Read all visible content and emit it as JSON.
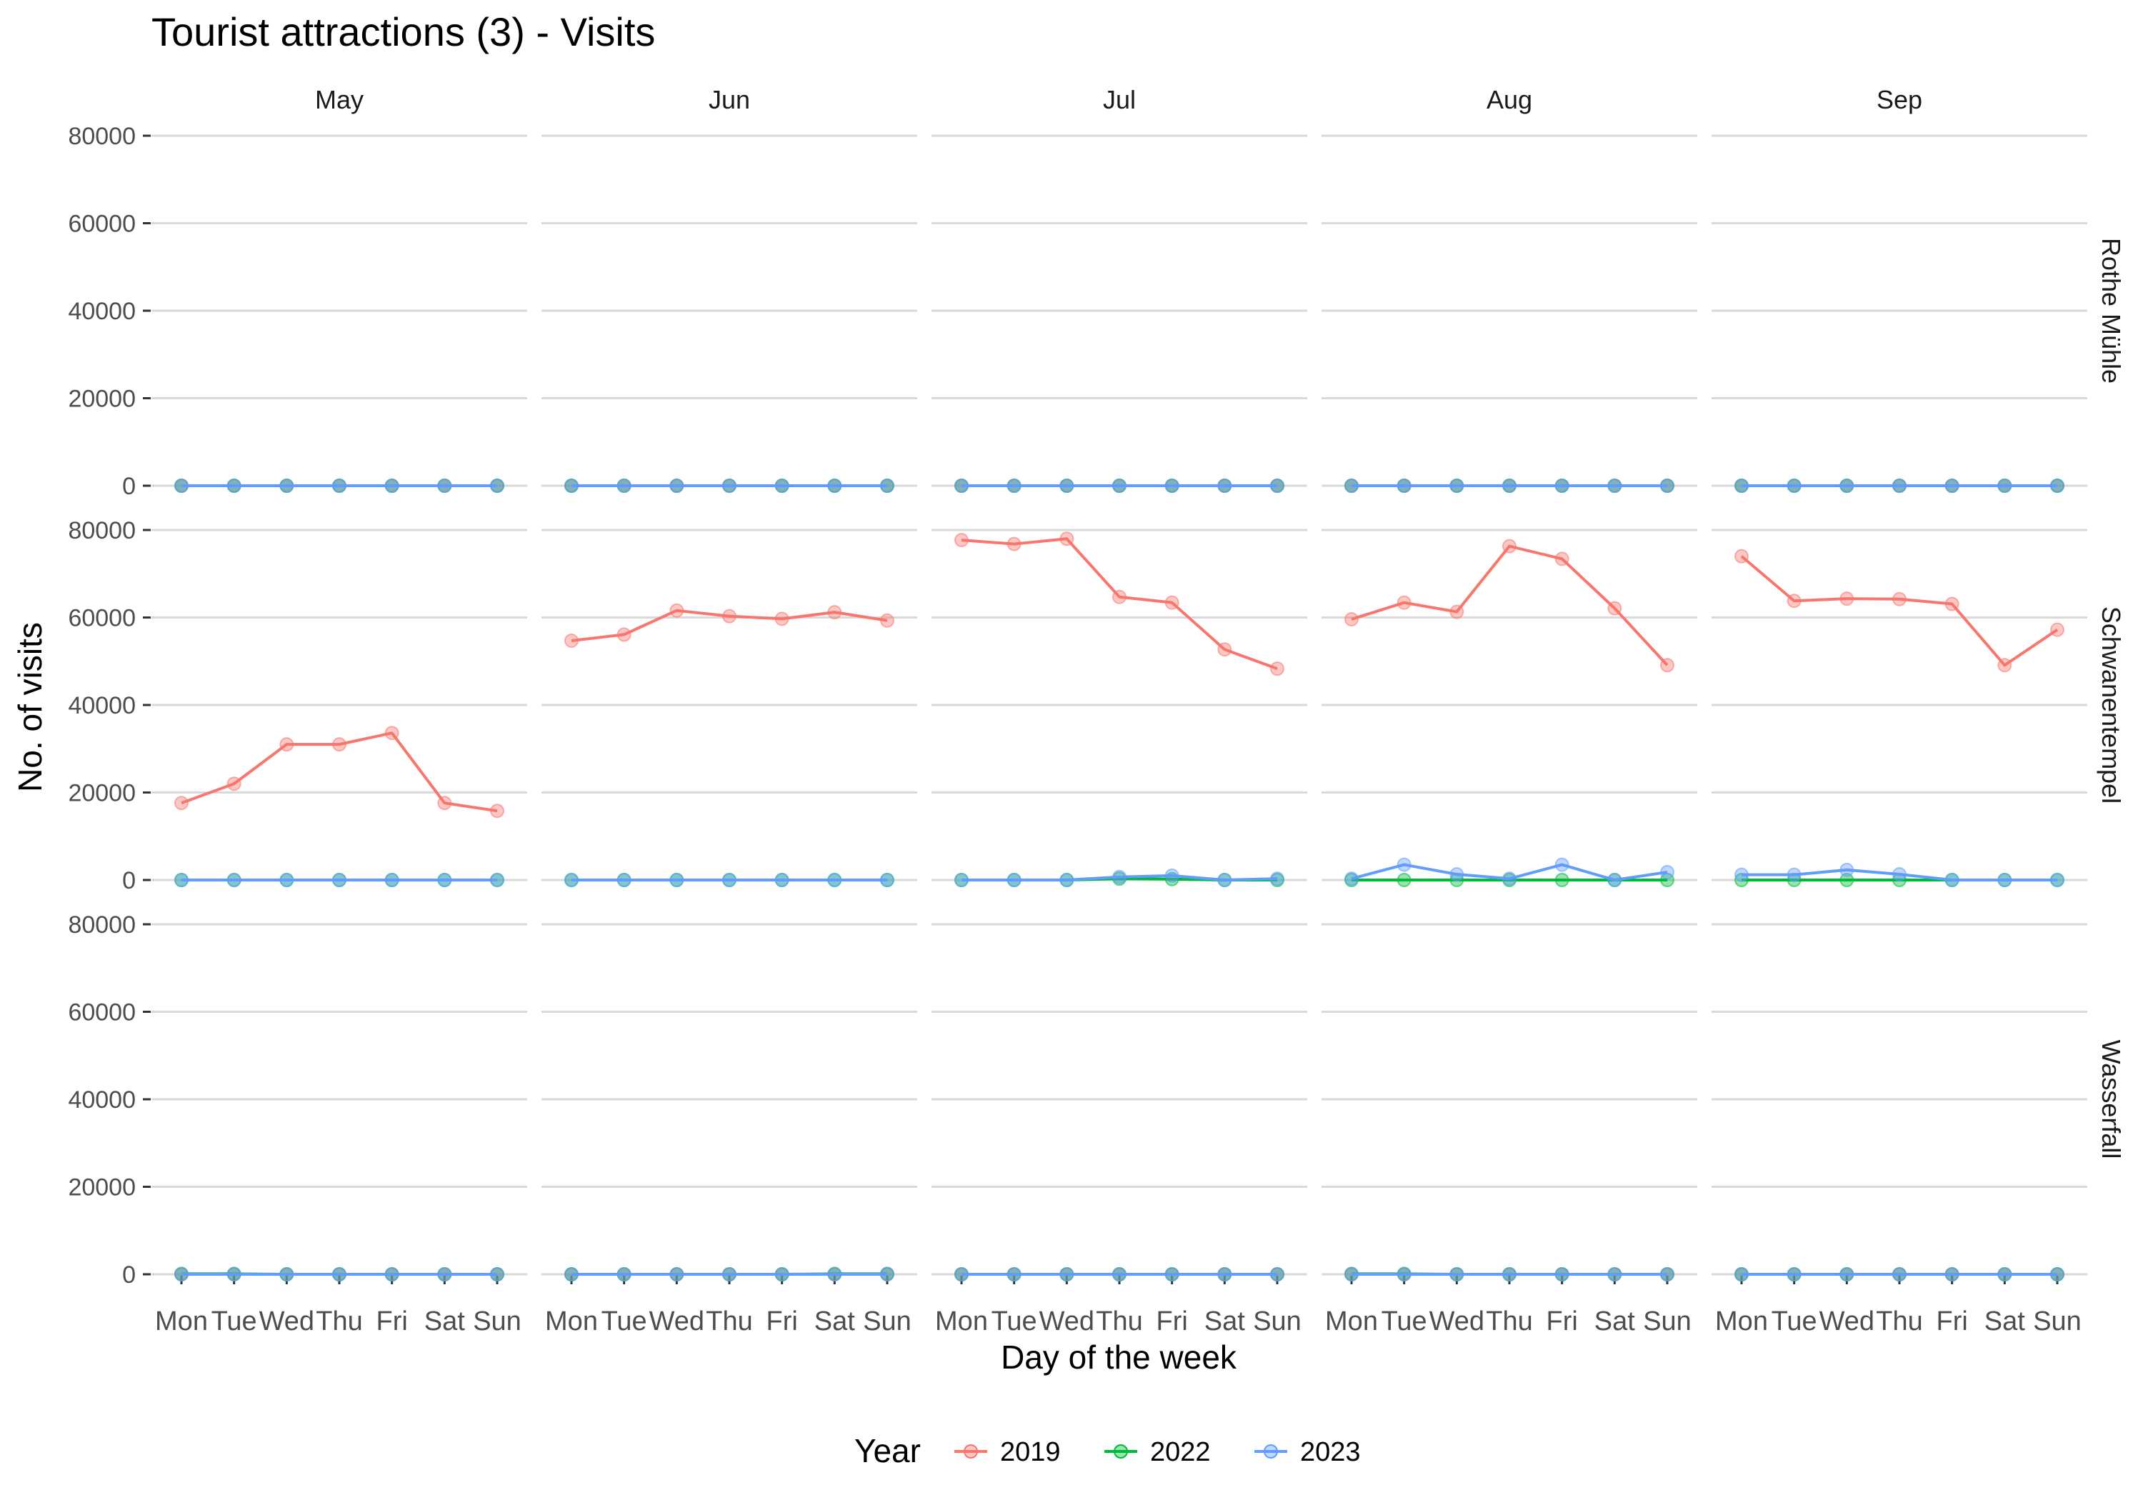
{
  "chart_data": {
    "type": "line",
    "title": "Tourist attractions (3) - Visits",
    "xlabel": "Day of the week",
    "ylabel": "No. of visits",
    "legend": {
      "title": "Year",
      "position": "bottom"
    },
    "facet_columns": [
      "May",
      "Jun",
      "Jul",
      "Aug",
      "Sep"
    ],
    "facet_rows": [
      "Rothe Mühle",
      "Schwanentempel",
      "Wasserfall"
    ],
    "categories": [
      "Mon",
      "Tue",
      "Wed",
      "Thu",
      "Fri",
      "Sat",
      "Sun"
    ],
    "ylim": [
      0,
      80000
    ],
    "yticks": [
      0,
      20000,
      40000,
      60000,
      80000
    ],
    "grid": true,
    "series": [
      {
        "name": "2019",
        "color": "#F8766D"
      },
      {
        "name": "2022",
        "color": "#00BA38"
      },
      {
        "name": "2023",
        "color": "#619CFF"
      }
    ],
    "panels": [
      {
        "row": "Rothe Mühle",
        "col": "May",
        "values": {
          "2019": [
            0,
            0,
            0,
            0,
            0,
            0,
            0
          ],
          "2022": [
            0,
            0,
            0,
            0,
            0,
            0,
            0
          ],
          "2023": [
            0,
            0,
            0,
            0,
            0,
            0,
            0
          ]
        }
      },
      {
        "row": "Rothe Mühle",
        "col": "Jun",
        "values": {
          "2019": [
            0,
            0,
            0,
            0,
            0,
            0,
            0
          ],
          "2022": [
            0,
            0,
            0,
            0,
            0,
            0,
            0
          ],
          "2023": [
            0,
            0,
            0,
            0,
            0,
            0,
            0
          ]
        }
      },
      {
        "row": "Rothe Mühle",
        "col": "Jul",
        "values": {
          "2019": [
            0,
            0,
            0,
            0,
            0,
            0,
            0
          ],
          "2022": [
            0,
            0,
            0,
            0,
            0,
            0,
            0
          ],
          "2023": [
            0,
            0,
            0,
            0,
            0,
            0,
            0
          ]
        }
      },
      {
        "row": "Rothe Mühle",
        "col": "Aug",
        "values": {
          "2019": [
            0,
            0,
            0,
            0,
            0,
            0,
            0
          ],
          "2022": [
            0,
            0,
            0,
            0,
            0,
            0,
            0
          ],
          "2023": [
            0,
            0,
            0,
            0,
            0,
            0,
            0
          ]
        }
      },
      {
        "row": "Rothe Mühle",
        "col": "Sep",
        "values": {
          "2019": [
            0,
            0,
            0,
            0,
            0,
            0,
            0
          ],
          "2022": [
            0,
            0,
            0,
            0,
            0,
            0,
            0
          ],
          "2023": [
            0,
            0,
            0,
            0,
            0,
            0,
            0
          ]
        }
      },
      {
        "row": "Schwanentempel",
        "col": "May",
        "values": {
          "2019": [
            17600,
            22000,
            31000,
            31000,
            33600,
            17600,
            15800
          ],
          "2022": [
            0,
            0,
            0,
            0,
            0,
            0,
            0
          ],
          "2023": [
            0,
            0,
            0,
            0,
            0,
            0,
            0
          ]
        }
      },
      {
        "row": "Schwanentempel",
        "col": "Jun",
        "values": {
          "2019": [
            54700,
            56100,
            61600,
            60300,
            59700,
            61200,
            59300
          ],
          "2022": [
            0,
            0,
            0,
            0,
            0,
            0,
            0
          ],
          "2023": [
            0,
            0,
            0,
            0,
            0,
            0,
            0
          ]
        }
      },
      {
        "row": "Schwanentempel",
        "col": "Jul",
        "values": {
          "2019": [
            77700,
            76800,
            78000,
            64700,
            63400,
            52700,
            48300
          ],
          "2022": [
            0,
            0,
            0,
            300,
            200,
            0,
            0
          ],
          "2023": [
            0,
            0,
            0,
            700,
            1000,
            0,
            300
          ]
        }
      },
      {
        "row": "Schwanentempel",
        "col": "Aug",
        "values": {
          "2019": [
            59600,
            63400,
            61300,
            76300,
            73400,
            62100,
            49100
          ],
          "2022": [
            0,
            0,
            0,
            0,
            0,
            0,
            0
          ],
          "2023": [
            300,
            3500,
            1300,
            300,
            3500,
            0,
            1800
          ]
        }
      },
      {
        "row": "Schwanentempel",
        "col": "Sep",
        "values": {
          "2019": [
            74000,
            63800,
            64300,
            64200,
            63100,
            49100,
            57200
          ],
          "2022": [
            0,
            0,
            0,
            0,
            0,
            0,
            0
          ],
          "2023": [
            1200,
            1200,
            2300,
            1300,
            0,
            0,
            0
          ]
        }
      },
      {
        "row": "Wasserfall",
        "col": "May",
        "values": {
          "2019": [
            0,
            0,
            0,
            0,
            0,
            0,
            0
          ],
          "2022": [
            100,
            100,
            0,
            0,
            0,
            0,
            0
          ],
          "2023": [
            0,
            0,
            0,
            0,
            0,
            0,
            0
          ]
        }
      },
      {
        "row": "Wasserfall",
        "col": "Jun",
        "values": {
          "2019": [
            0,
            0,
            0,
            0,
            0,
            0,
            0
          ],
          "2022": [
            0,
            0,
            0,
            0,
            0,
            100,
            100
          ],
          "2023": [
            0,
            0,
            0,
            0,
            0,
            0,
            0
          ]
        }
      },
      {
        "row": "Wasserfall",
        "col": "Jul",
        "values": {
          "2019": [
            0,
            0,
            0,
            0,
            0,
            0,
            0
          ],
          "2022": [
            0,
            0,
            0,
            0,
            0,
            0,
            0
          ],
          "2023": [
            0,
            0,
            0,
            0,
            0,
            0,
            0
          ]
        }
      },
      {
        "row": "Wasserfall",
        "col": "Aug",
        "values": {
          "2019": [
            0,
            0,
            0,
            0,
            0,
            0,
            0
          ],
          "2022": [
            100,
            100,
            0,
            0,
            0,
            0,
            0
          ],
          "2023": [
            0,
            0,
            0,
            0,
            0,
            0,
            0
          ]
        }
      },
      {
        "row": "Wasserfall",
        "col": "Sep",
        "values": {
          "2019": [
            0,
            0,
            0,
            0,
            0,
            0,
            0
          ],
          "2022": [
            0,
            0,
            0,
            0,
            0,
            0,
            0
          ],
          "2023": [
            0,
            0,
            0,
            0,
            0,
            0,
            0
          ]
        }
      }
    ]
  }
}
